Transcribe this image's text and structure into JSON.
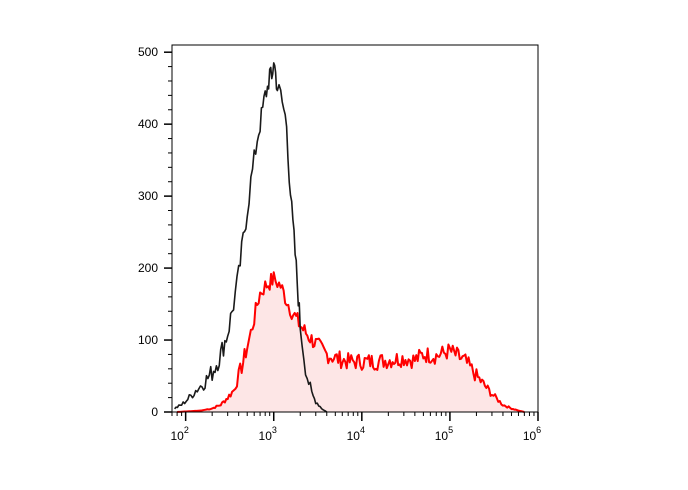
{
  "chart_data": {
    "type": "area",
    "title": "",
    "xlabel": "",
    "ylabel": "",
    "xscale": "log",
    "xlim": [
      70,
      1000000
    ],
    "ylim": [
      0,
      510
    ],
    "grid": false,
    "legend": "none",
    "x_ticks": [
      {
        "base": "10",
        "exp": "2",
        "value": 100
      },
      {
        "base": "10",
        "exp": "3",
        "value": 1000
      },
      {
        "base": "10",
        "exp": "4",
        "value": 10000
      },
      {
        "base": "10",
        "exp": "5",
        "value": 100000
      },
      {
        "base": "10",
        "exp": "6",
        "value": 1000000
      }
    ],
    "y_ticks": [
      {
        "label": "0",
        "value": 0
      },
      {
        "label": "100",
        "value": 100
      },
      {
        "label": "200",
        "value": 200
      },
      {
        "label": "300",
        "value": 300
      },
      {
        "label": "400",
        "value": 400
      },
      {
        "label": "500",
        "value": 500
      }
    ],
    "series": [
      {
        "color": "#1a1a1a",
        "fill": "none",
        "points": [
          [
            75,
            5
          ],
          [
            90,
            10
          ],
          [
            110,
            20
          ],
          [
            130,
            30
          ],
          [
            160,
            40
          ],
          [
            200,
            55
          ],
          [
            250,
            80
          ],
          [
            300,
            110
          ],
          [
            350,
            150
          ],
          [
            400,
            190
          ],
          [
            450,
            240
          ],
          [
            500,
            280
          ],
          [
            550,
            320
          ],
          [
            600,
            350
          ],
          [
            650,
            380
          ],
          [
            700,
            400
          ],
          [
            750,
            420
          ],
          [
            800,
            440
          ],
          [
            850,
            450
          ],
          [
            900,
            470
          ],
          [
            950,
            460
          ],
          [
            1000,
            490
          ],
          [
            1050,
            470
          ],
          [
            1100,
            450
          ],
          [
            1200,
            440
          ],
          [
            1300,
            420
          ],
          [
            1400,
            400
          ],
          [
            1500,
            330
          ],
          [
            1600,
            280
          ],
          [
            1700,
            240
          ],
          [
            1800,
            200
          ],
          [
            1900,
            160
          ],
          [
            2000,
            120
          ],
          [
            2200,
            80
          ],
          [
            2400,
            50
          ],
          [
            2700,
            25
          ],
          [
            3000,
            15
          ],
          [
            3500,
            5
          ],
          [
            4000,
            0
          ]
        ]
      },
      {
        "color": "#ff0000",
        "fill": "#fde6e6",
        "points": [
          [
            80,
            0
          ],
          [
            150,
            2
          ],
          [
            200,
            5
          ],
          [
            250,
            10
          ],
          [
            300,
            20
          ],
          [
            350,
            30
          ],
          [
            400,
            50
          ],
          [
            450,
            70
          ],
          [
            500,
            90
          ],
          [
            550,
            110
          ],
          [
            600,
            130
          ],
          [
            650,
            150
          ],
          [
            700,
            165
          ],
          [
            800,
            175
          ],
          [
            900,
            180
          ],
          [
            1000,
            185
          ],
          [
            1100,
            180
          ],
          [
            1200,
            175
          ],
          [
            1400,
            155
          ],
          [
            1600,
            140
          ],
          [
            1800,
            130
          ],
          [
            2000,
            120
          ],
          [
            2500,
            105
          ],
          [
            3000,
            95
          ],
          [
            4000,
            80
          ],
          [
            5000,
            75
          ],
          [
            7000,
            70
          ],
          [
            10000,
            70
          ],
          [
            15000,
            70
          ],
          [
            20000,
            72
          ],
          [
            30000,
            75
          ],
          [
            40000,
            72
          ],
          [
            50000,
            80
          ],
          [
            70000,
            78
          ],
          [
            100000,
            85
          ],
          [
            150000,
            70
          ],
          [
            200000,
            50
          ],
          [
            300000,
            25
          ],
          [
            400000,
            10
          ],
          [
            500000,
            5
          ],
          [
            600000,
            2
          ],
          [
            700000,
            0
          ]
        ]
      }
    ]
  }
}
